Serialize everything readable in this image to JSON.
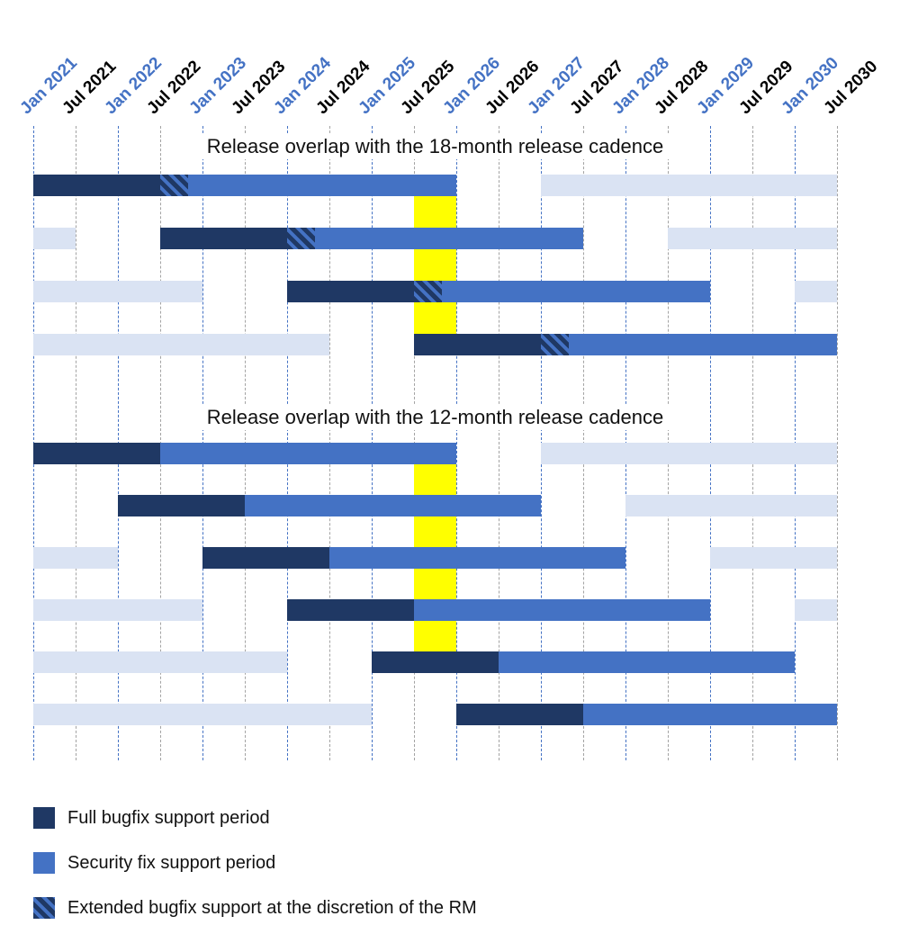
{
  "chart_data": {
    "type": "gantt",
    "unit": "months_since_jan_2021",
    "tick_interval_months": 6,
    "x_range_months": [
      0,
      114
    ],
    "x_ticks": [
      {
        "label": "Jan 2021",
        "month": 0
      },
      {
        "label": "Jul 2021",
        "month": 6
      },
      {
        "label": "Jan 2022",
        "month": 12
      },
      {
        "label": "Jul 2022",
        "month": 18
      },
      {
        "label": "Jan 2023",
        "month": 24
      },
      {
        "label": "Jul 2023",
        "month": 30
      },
      {
        "label": "Jan 2024",
        "month": 36
      },
      {
        "label": "Jul 2024",
        "month": 42
      },
      {
        "label": "Jan 2025",
        "month": 48
      },
      {
        "label": "Jul 2025",
        "month": 54
      },
      {
        "label": "Jan 2026",
        "month": 60
      },
      {
        "label": "Jul 2026",
        "month": 66
      },
      {
        "label": "Jan 2027",
        "month": 72
      },
      {
        "label": "Jul 2027",
        "month": 78
      },
      {
        "label": "Jan 2028",
        "month": 84
      },
      {
        "label": "Jul 2028",
        "month": 90
      },
      {
        "label": "Jan 2029",
        "month": 96
      },
      {
        "label": "Jul 2029",
        "month": 102
      },
      {
        "label": "Jan 2030",
        "month": 108
      },
      {
        "label": "Jul 2030",
        "month": 114
      }
    ],
    "highlight_band": {
      "start_month": 54,
      "end_month": 60,
      "color": "#ffff00"
    },
    "sections": [
      {
        "title": "Release overlap with the 18-month release cadence",
        "highlight_rows": [
          1,
          4
        ],
        "rows": [
          {
            "segments": [
              {
                "kind": "full",
                "start": 0,
                "end": 18
              },
              {
                "kind": "extended",
                "start": 18,
                "end": 22
              },
              {
                "kind": "security",
                "start": 22,
                "end": 60
              },
              {
                "kind": "adjacent",
                "start": 72,
                "end": 114
              }
            ]
          },
          {
            "segments": [
              {
                "kind": "adjacent",
                "start": 0,
                "end": 6
              },
              {
                "kind": "full",
                "start": 18,
                "end": 36
              },
              {
                "kind": "extended",
                "start": 36,
                "end": 40
              },
              {
                "kind": "security",
                "start": 40,
                "end": 78
              },
              {
                "kind": "adjacent",
                "start": 90,
                "end": 114
              }
            ]
          },
          {
            "segments": [
              {
                "kind": "adjacent",
                "start": 0,
                "end": 24
              },
              {
                "kind": "full",
                "start": 36,
                "end": 54
              },
              {
                "kind": "extended",
                "start": 54,
                "end": 58
              },
              {
                "kind": "security",
                "start": 58,
                "end": 96
              },
              {
                "kind": "adjacent",
                "start": 108,
                "end": 114
              }
            ]
          },
          {
            "segments": [
              {
                "kind": "adjacent",
                "start": 0,
                "end": 42
              },
              {
                "kind": "full",
                "start": 54,
                "end": 72
              },
              {
                "kind": "extended",
                "start": 72,
                "end": 76
              },
              {
                "kind": "security",
                "start": 76,
                "end": 114
              }
            ]
          }
        ]
      },
      {
        "title": "Release overlap with the 12-month release cadence",
        "highlight_rows": [
          1,
          5
        ],
        "rows": [
          {
            "segments": [
              {
                "kind": "full",
                "start": 0,
                "end": 18
              },
              {
                "kind": "security",
                "start": 18,
                "end": 60
              },
              {
                "kind": "adjacent",
                "start": 72,
                "end": 114
              }
            ]
          },
          {
            "segments": [
              {
                "kind": "full",
                "start": 12,
                "end": 30
              },
              {
                "kind": "security",
                "start": 30,
                "end": 72
              },
              {
                "kind": "adjacent",
                "start": 84,
                "end": 114
              }
            ]
          },
          {
            "segments": [
              {
                "kind": "adjacent",
                "start": 0,
                "end": 12
              },
              {
                "kind": "full",
                "start": 24,
                "end": 42
              },
              {
                "kind": "security",
                "start": 42,
                "end": 84
              },
              {
                "kind": "adjacent",
                "start": 96,
                "end": 114
              }
            ]
          },
          {
            "segments": [
              {
                "kind": "adjacent",
                "start": 0,
                "end": 24
              },
              {
                "kind": "full",
                "start": 36,
                "end": 54
              },
              {
                "kind": "security",
                "start": 54,
                "end": 96
              },
              {
                "kind": "adjacent",
                "start": 108,
                "end": 114
              }
            ]
          },
          {
            "segments": [
              {
                "kind": "adjacent",
                "start": 0,
                "end": 36
              },
              {
                "kind": "full",
                "start": 48,
                "end": 66
              },
              {
                "kind": "security",
                "start": 66,
                "end": 108
              }
            ]
          },
          {
            "segments": [
              {
                "kind": "adjacent",
                "start": 0,
                "end": 48
              },
              {
                "kind": "full",
                "start": 60,
                "end": 78
              },
              {
                "kind": "security",
                "start": 78,
                "end": 114
              }
            ]
          }
        ]
      }
    ],
    "legend": [
      {
        "kind": "full",
        "label": "Full bugfix support period"
      },
      {
        "kind": "security",
        "label": "Security fix support period"
      },
      {
        "kind": "extended",
        "label": "Extended bugfix support at the discretion of the RM"
      }
    ],
    "colors": {
      "full": "#1f3864",
      "security": "#4472c4",
      "adjacent": "#dae3f3",
      "extended_base": "#1f3864",
      "extended_stripe": "#4472c4",
      "highlight": "#ffff00",
      "jan_label": "#4472c4",
      "jul_label": "#000000",
      "jan_grid": "#4472c4",
      "jul_grid": "#a3a3a3"
    }
  }
}
